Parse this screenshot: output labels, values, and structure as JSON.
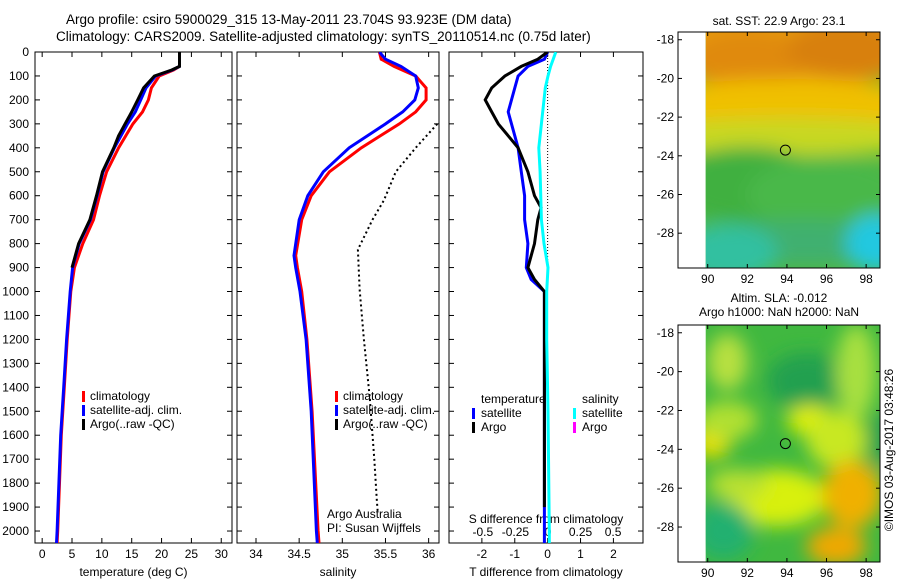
{
  "title_line1": "Argo profile: csiro 5900029_315 13-May-2011 23.704S 93.923E (DM data)",
  "title_line2": "Climatology: CARS2009. Satellite-adjusted climatology: synTS_20110514.nc (0.75d later)",
  "colors": {
    "climatology": "#ff0000",
    "satellite": "#0000ff",
    "argo": "#000000",
    "sal_satellite": "#00ffff",
    "sal_argo": "#ff00ff"
  },
  "chart_data": [
    {
      "type": "line",
      "name": "temperature",
      "xlabel": "temperature (deg C)",
      "ylabel": "depth",
      "xlim": [
        -1.2,
        31.8
      ],
      "ylim": [
        2050,
        0
      ],
      "xticks": [
        0,
        5,
        10,
        15,
        20,
        25,
        30
      ],
      "yticks": [
        0,
        100,
        200,
        300,
        400,
        500,
        600,
        700,
        800,
        900,
        1000,
        1100,
        1200,
        1300,
        1400,
        1500,
        1600,
        1700,
        1800,
        1900,
        2000
      ],
      "legend": [
        "climatology",
        "satellite-adj. clim.",
        "Argo(..raw -QC)"
      ],
      "series": [
        {
          "name": "climatology",
          "color": "#ff0000",
          "depth": [
            0,
            60,
            75,
            100,
            150,
            200,
            250,
            300,
            400,
            500,
            600,
            700,
            800,
            900,
            1000,
            1200,
            1400,
            1600,
            1800,
            2000,
            2050
          ],
          "values": [
            23,
            23,
            22,
            19.6,
            18.3,
            17.8,
            16.8,
            15.2,
            12.8,
            10.8,
            9.6,
            8.6,
            6.8,
            5.4,
            4.8,
            4.2,
            3.7,
            3.2,
            2.9,
            2.6,
            2.5
          ]
        },
        {
          "name": "satellite-adj. clim.",
          "color": "#0000ff",
          "depth": [
            0,
            60,
            75,
            100,
            150,
            200,
            250,
            300,
            400,
            500,
            600,
            700,
            800,
            900,
            1000,
            1200,
            1400,
            1600,
            1800,
            2000,
            2050
          ],
          "values": [
            23,
            23,
            21.8,
            19,
            17.4,
            16.5,
            15.6,
            14.3,
            12.1,
            10.2,
            9.2,
            8.1,
            6.2,
            5.1,
            4.7,
            4.1,
            3.6,
            3.1,
            2.8,
            2.5,
            2.4
          ]
        },
        {
          "name": "Argo(..raw -QC)",
          "color": "#000000",
          "depth": [
            0,
            60,
            75,
            100,
            150,
            200,
            250,
            300,
            350,
            400,
            500,
            600,
            700,
            800,
            900
          ],
          "values": [
            23,
            23,
            21.7,
            18.8,
            17,
            16,
            15,
            13.9,
            12.8,
            12,
            10.1,
            9.1,
            8.0,
            6.1,
            5.0
          ]
        }
      ]
    },
    {
      "type": "line",
      "name": "salinity",
      "xlabel": "salinity",
      "xlim": [
        33.78,
        36.12
      ],
      "ylim": [
        2050,
        0
      ],
      "xticks": [
        34,
        34.5,
        35,
        35.5,
        36
      ],
      "legend": [
        "climatology",
        "satellite-adj. clim.",
        "Argo(..raw -QC)"
      ],
      "annotation": [
        "Argo Australia",
        "PI: Susan Wijffels"
      ],
      "series": [
        {
          "name": "climatology",
          "color": "#ff0000",
          "depth": [
            0,
            30,
            60,
            100,
            150,
            200,
            250,
            300,
            400,
            500,
            600,
            700,
            850,
            900,
            1000,
            1200,
            1500,
            2000,
            2050
          ],
          "values": [
            35.43,
            35.45,
            35.6,
            35.85,
            35.97,
            35.97,
            35.85,
            35.66,
            35.22,
            34.85,
            34.64,
            34.53,
            34.46,
            34.48,
            34.53,
            34.59,
            34.65,
            34.72,
            34.73
          ]
        },
        {
          "name": "satellite-adj. clim.",
          "color": "#0000ff",
          "depth": [
            0,
            30,
            60,
            100,
            150,
            200,
            250,
            300,
            400,
            500,
            600,
            700,
            850,
            900,
            1000,
            1200,
            1500,
            2000,
            2050
          ],
          "values": [
            35.43,
            35.5,
            35.68,
            35.85,
            35.88,
            35.84,
            35.7,
            35.5,
            35.08,
            34.78,
            34.6,
            34.5,
            34.44,
            34.46,
            34.51,
            34.58,
            34.64,
            34.7,
            34.71
          ]
        },
        {
          "name": "Argo(..raw -QC)",
          "color": "#000000",
          "dotted": true,
          "depth": [
            300,
            400,
            500,
            620,
            700,
            825,
            990,
            1200,
            1450,
            1700,
            1870,
            1920
          ],
          "values": [
            36.1,
            35.85,
            35.62,
            35.48,
            35.35,
            35.18,
            35.2,
            35.25,
            35.32,
            35.37,
            35.4,
            35.41
          ]
        }
      ]
    },
    {
      "type": "line",
      "name": "difference",
      "xlabel": "T difference from climatology",
      "x2label": "S difference from climatology",
      "xlim": [
        -3,
        2.9
      ],
      "x2lim": [
        -0.76,
        0.73
      ],
      "ylim": [
        2050,
        0
      ],
      "xticks": [
        -2,
        -1,
        0,
        1,
        2
      ],
      "x2ticks": [
        -0.5,
        -0.25,
        0,
        0.25,
        0.5
      ],
      "legend": {
        "temperature_title": "temperature",
        "salinity_title": "salinity",
        "items": [
          "satellite",
          "Argo",
          "satellite",
          "Argo"
        ]
      },
      "series": [
        {
          "name": "T satellite",
          "color": "#0000ff",
          "axis": "T",
          "depth": [
            0,
            30,
            60,
            100,
            150,
            200,
            250,
            300,
            400,
            500,
            600,
            700,
            800,
            900,
            950,
            1000,
            1500,
            2000,
            2050
          ],
          "values": [
            0,
            -0.1,
            -0.6,
            -0.9,
            -1.0,
            -1.1,
            -1.2,
            -1.1,
            -0.9,
            -0.8,
            -0.7,
            -0.7,
            -0.6,
            -0.65,
            -0.5,
            -0.1,
            -0.1,
            -0.1,
            -0.1
          ]
        },
        {
          "name": "T Argo",
          "color": "#000000",
          "axis": "T",
          "depth": [
            0,
            30,
            60,
            100,
            150,
            200,
            250,
            300,
            350,
            400,
            500,
            600,
            650,
            700,
            800,
            900,
            950,
            1000,
            1500,
            1900
          ],
          "values": [
            0,
            -0.3,
            -0.8,
            -1.3,
            -1.7,
            -1.9,
            -1.7,
            -1.5,
            -1.2,
            -0.9,
            -0.6,
            -0.4,
            -0.2,
            -0.3,
            -0.4,
            -0.6,
            -0.4,
            -0.1,
            -0.1,
            -0.1
          ]
        },
        {
          "name": "S satellite",
          "color": "#00ffff",
          "axis": "S",
          "depth": [
            0,
            30,
            60,
            100,
            150,
            200,
            300,
            400,
            500,
            700,
            800,
            900,
            1000,
            1200,
            1500,
            2000,
            2050
          ],
          "values": [
            0.06,
            0.04,
            0.02,
            0.0,
            -0.02,
            -0.03,
            -0.05,
            -0.07,
            -0.06,
            -0.05,
            -0.03,
            0.0,
            -0.01,
            -0.01,
            0.0,
            0.01,
            0.01
          ]
        }
      ]
    },
    {
      "type": "heatmap",
      "name": "sst-map",
      "title": "sat. SST: 22.9 Argo: 23.1",
      "xticks": [
        90,
        92,
        94,
        96,
        98
      ],
      "yticks": [
        -18,
        -20,
        -22,
        -24,
        -26,
        -28
      ],
      "xlim": [
        88.5,
        98.7
      ],
      "ylim": [
        -29.8,
        -17.6
      ],
      "marker": [
        93.923,
        -23.704
      ]
    },
    {
      "type": "heatmap",
      "name": "sla-map",
      "title": "Altim. SLA: -0.012",
      "subtitle": "Argo h1000: NaN h2000: NaN",
      "xticks": [
        90,
        92,
        94,
        96,
        98
      ],
      "yticks": [
        -18,
        -20,
        -22,
        -24,
        -26,
        -28
      ],
      "xlim": [
        88.5,
        98.7
      ],
      "ylim": [
        -29.8,
        -17.6
      ],
      "marker": [
        93.923,
        -23.704
      ]
    }
  ],
  "credit": "©IMOS 03-Aug-2017 03:48:26"
}
